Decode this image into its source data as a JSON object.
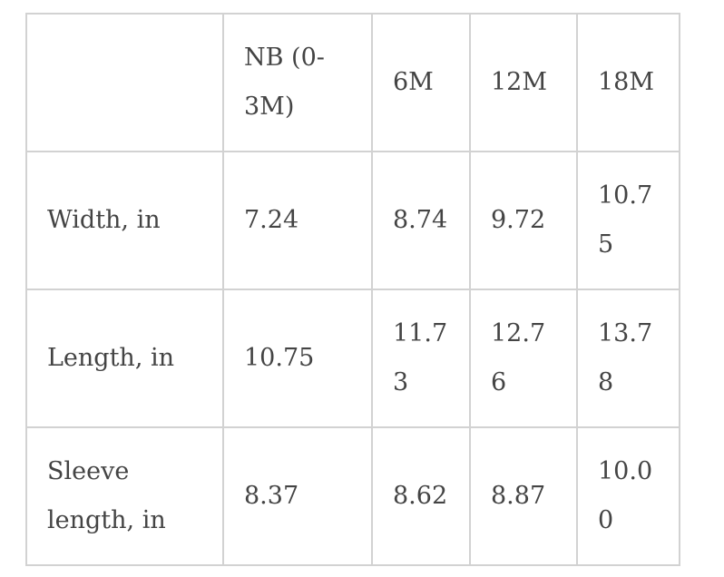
{
  "chart_data": {
    "type": "table",
    "title": "",
    "columns": [
      "",
      "NB (0-3M)",
      "6M",
      "12M",
      "18M"
    ],
    "rows": [
      {
        "label": "Width, in",
        "values": [
          7.24,
          8.74,
          9.72,
          10.75
        ]
      },
      {
        "label": "Length, in",
        "values": [
          10.75,
          11.73,
          12.76,
          13.78
        ]
      },
      {
        "label": "Sleeve length, in",
        "values": [
          8.37,
          8.62,
          8.87,
          10.0
        ]
      }
    ],
    "units": "inches",
    "layout": {
      "grid": "on",
      "header_row": true,
      "text_align": "left"
    }
  },
  "table": {
    "columns": [
      "",
      "NB (0-3M)",
      "6M",
      "12M",
      "18M"
    ],
    "rows": [
      {
        "label": "Width, in",
        "values": [
          "7.24",
          "8.74",
          "9.72",
          "10.75"
        ]
      },
      {
        "label": "Length, in",
        "values": [
          "10.75",
          "11.73",
          "12.76",
          "13.78"
        ]
      },
      {
        "label": "Sleeve length, in",
        "values": [
          "8.37",
          "8.62",
          "8.87",
          "10.00"
        ]
      }
    ],
    "colors": {
      "text": "#444444",
      "border": "#d2d2d2",
      "background": "#ffffff"
    }
  }
}
